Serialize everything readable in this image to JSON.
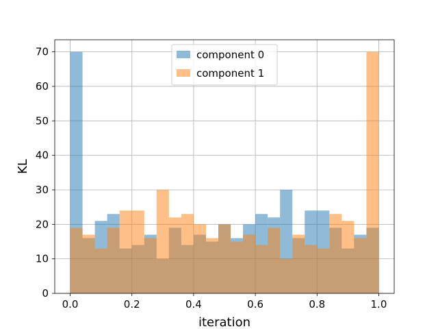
{
  "chart_data": {
    "type": "bar",
    "xlabel": "iteration",
    "ylabel": "KL",
    "xlim": [
      -0.05,
      1.05
    ],
    "ylim": [
      0,
      73.5
    ],
    "xticks": [
      0.0,
      0.2,
      0.4,
      0.6,
      0.8,
      1.0
    ],
    "xtick_labels": [
      "0.0",
      "0.2",
      "0.4",
      "0.6",
      "0.8",
      "1.0"
    ],
    "yticks": [
      0,
      10,
      20,
      30,
      40,
      50,
      60,
      70
    ],
    "ytick_labels": [
      "0",
      "10",
      "20",
      "30",
      "40",
      "50",
      "60",
      "70"
    ],
    "bin_edges": [
      0.0,
      0.04,
      0.08,
      0.12,
      0.16,
      0.2,
      0.24,
      0.28,
      0.32,
      0.36,
      0.4,
      0.44,
      0.48,
      0.52,
      0.56,
      0.6,
      0.64,
      0.68,
      0.72,
      0.76,
      0.8,
      0.84,
      0.88,
      0.92,
      0.96,
      1.0
    ],
    "grid": true,
    "legend_position": "top-center",
    "series": [
      {
        "name": "component 0",
        "color": "#1f77b4",
        "values": [
          70,
          16,
          21,
          23,
          13,
          14,
          17,
          10,
          19,
          14,
          17,
          15,
          20,
          16,
          20,
          23,
          22,
          30,
          16,
          24,
          24,
          19,
          13,
          17,
          19
        ]
      },
      {
        "name": "component 1",
        "color": "#ff7f0e",
        "values": [
          19,
          17,
          13,
          19,
          24,
          24,
          16,
          30,
          22,
          23,
          20,
          16,
          20,
          15,
          17,
          14,
          19,
          10,
          17,
          14,
          13,
          23,
          21,
          16,
          70
        ]
      }
    ]
  }
}
